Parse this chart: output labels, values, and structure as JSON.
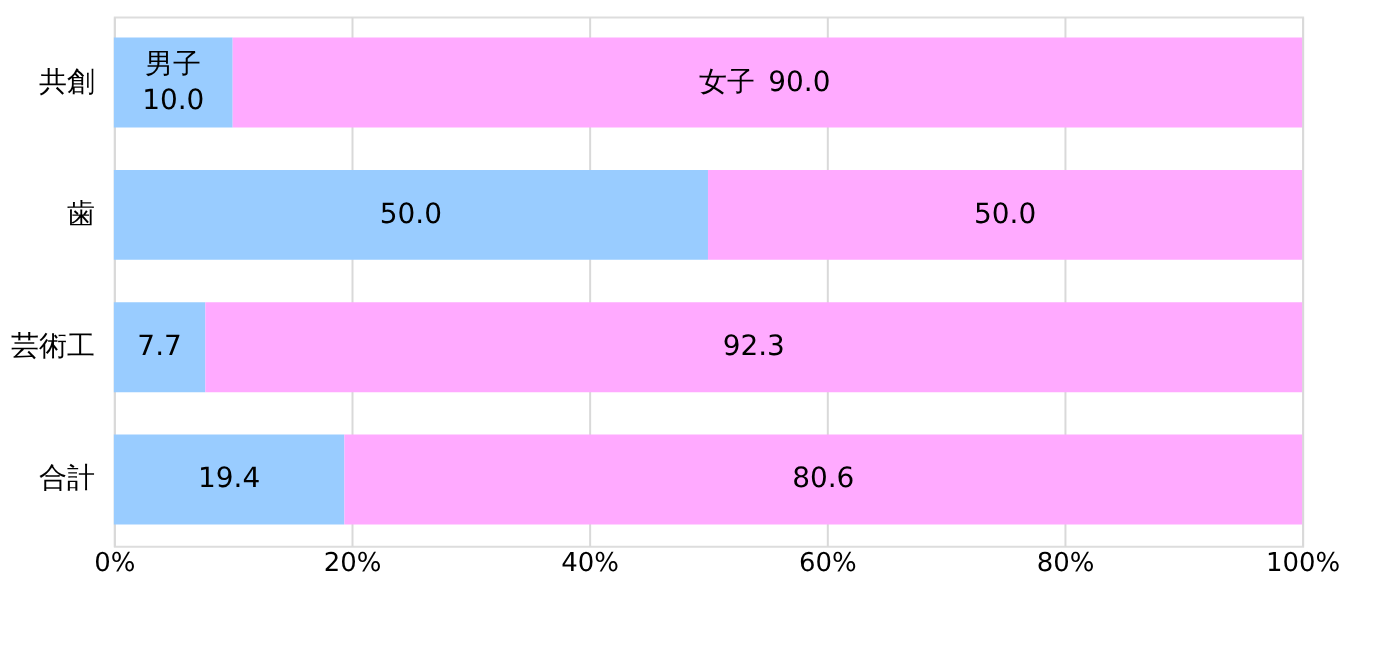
{
  "chart_data": {
    "type": "bar",
    "orientation": "horizontal",
    "stacked": true,
    "categories": [
      "共創",
      "歯",
      "芸術工",
      "合計"
    ],
    "series": [
      {
        "name": "男子",
        "color": "#99ccff",
        "values": [
          10.0,
          50.0,
          7.7,
          19.4
        ],
        "value_labels": [
          "10.0",
          "50.0",
          "7.7",
          "19.4"
        ]
      },
      {
        "name": "女子",
        "color": "#ffaaff",
        "values": [
          90.0,
          50.0,
          92.3,
          80.6
        ],
        "value_labels": [
          "90.0",
          "50.0",
          "92.3",
          "80.6"
        ]
      }
    ],
    "xlim": [
      0,
      100
    ],
    "xticks": [
      {
        "value": 0,
        "label": "0%"
      },
      {
        "value": 20,
        "label": "20%"
      },
      {
        "value": 40,
        "label": "40%"
      },
      {
        "value": 60,
        "label": "60%"
      },
      {
        "value": 80,
        "label": "80%"
      },
      {
        "value": 100,
        "label": "100%"
      }
    ],
    "grid": "x"
  }
}
